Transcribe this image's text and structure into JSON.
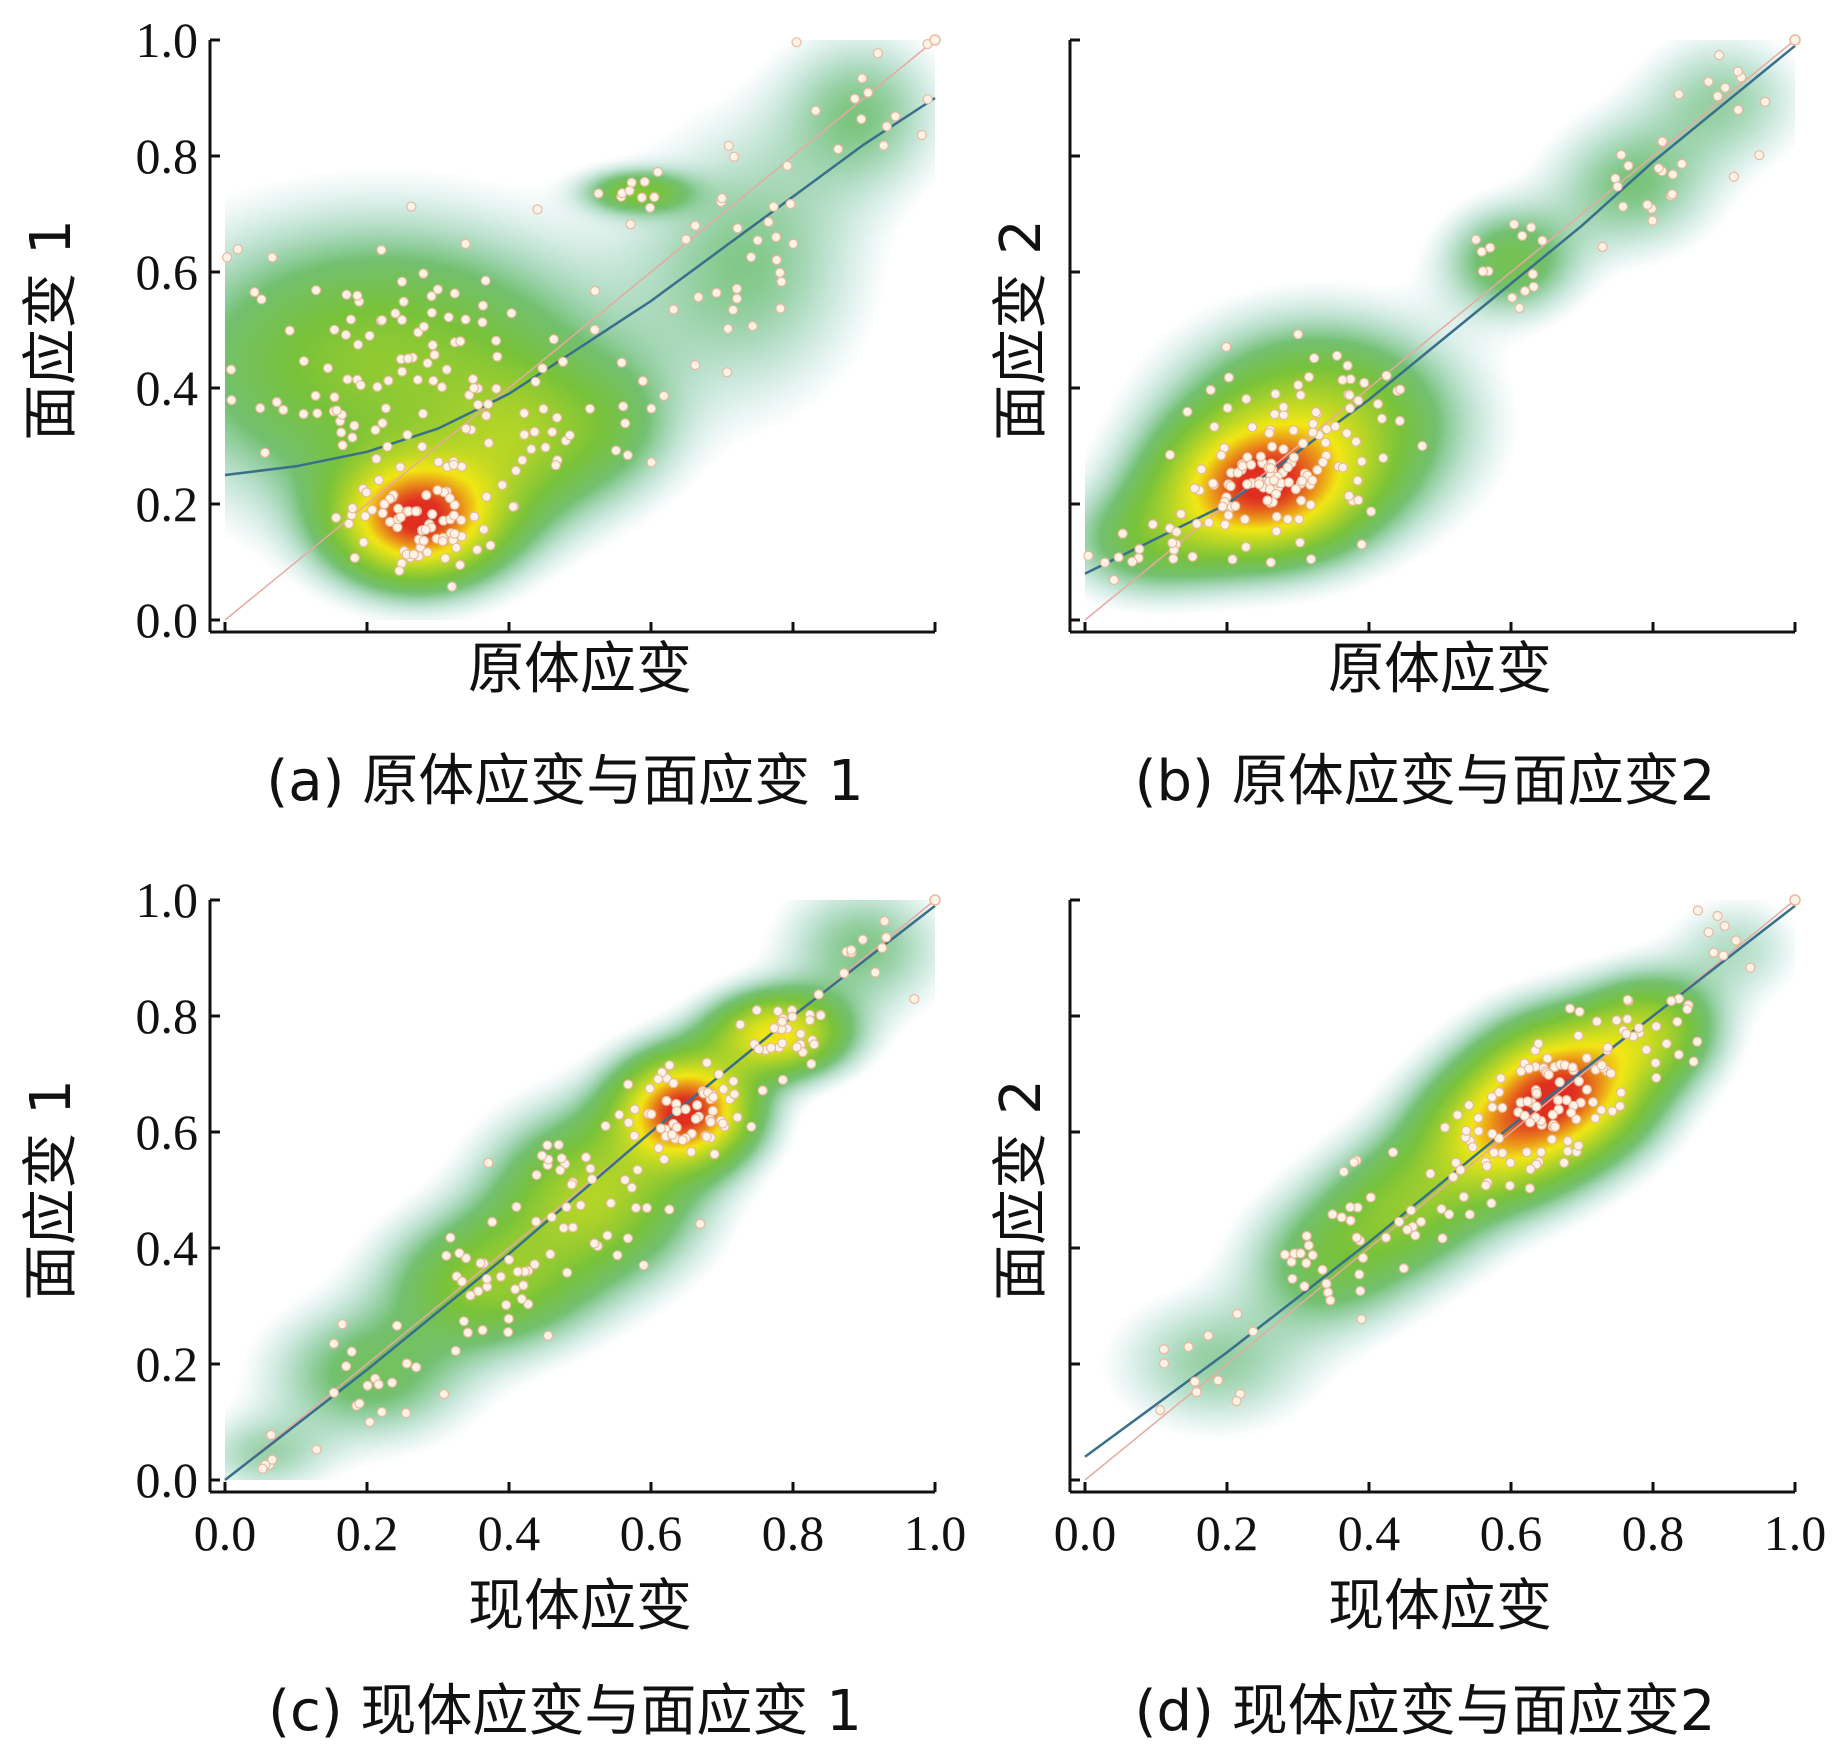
{
  "chart_data": [
    {
      "id": "a",
      "type": "scatter",
      "subtype": "density-scatter",
      "caption": "(a) 原体应变与面应变 1",
      "xlabel": "原体应变",
      "ylabel": "面应变 1",
      "xlim": [
        0,
        1
      ],
      "ylim": [
        0,
        1
      ],
      "yticks": [
        "0.0",
        "0.2",
        "0.4",
        "0.6",
        "0.8",
        "1.0"
      ],
      "xticks": [],
      "fit_curve": [
        [
          0,
          0.25
        ],
        [
          0.1,
          0.265
        ],
        [
          0.2,
          0.29
        ],
        [
          0.3,
          0.33
        ],
        [
          0.4,
          0.39
        ],
        [
          0.5,
          0.47
        ],
        [
          0.6,
          0.55
        ],
        [
          0.7,
          0.64
        ],
        [
          0.8,
          0.73
        ],
        [
          0.9,
          0.82
        ],
        [
          1.0,
          0.9
        ]
      ],
      "clusters": [
        {
          "cx": 0.27,
          "cy": 0.17,
          "sx": 0.05,
          "sy": 0.045,
          "n": 70,
          "w": 1.0
        },
        {
          "cx": 0.22,
          "cy": 0.44,
          "sx": 0.13,
          "sy": 0.1,
          "n": 110,
          "w": 0.45
        },
        {
          "cx": 0.42,
          "cy": 0.3,
          "sx": 0.05,
          "sy": 0.06,
          "n": 20,
          "w": 0.3
        },
        {
          "cx": 0.58,
          "cy": 0.74,
          "sx": 0.03,
          "sy": 0.015,
          "n": 10,
          "w": 0.35
        },
        {
          "cx": 0.74,
          "cy": 0.62,
          "sx": 0.07,
          "sy": 0.1,
          "n": 30,
          "w": 0.2
        },
        {
          "cx": 0.9,
          "cy": 0.88,
          "sx": 0.05,
          "sy": 0.06,
          "n": 15,
          "w": 0.2
        },
        {
          "cx": 0.55,
          "cy": 0.33,
          "sx": 0.04,
          "sy": 0.05,
          "n": 8,
          "w": 0.15
        }
      ]
    },
    {
      "id": "b",
      "type": "scatter",
      "subtype": "density-scatter",
      "caption": "(b) 原体应变与面应变2",
      "xlabel": "原体应变",
      "ylabel": "面应变 2",
      "xlim": [
        0,
        1
      ],
      "ylim": [
        0,
        1
      ],
      "yticks": [],
      "xticks": [],
      "fit_curve": [
        [
          0,
          0.08
        ],
        [
          0.1,
          0.14
        ],
        [
          0.2,
          0.2
        ],
        [
          0.3,
          0.29
        ],
        [
          0.4,
          0.38
        ],
        [
          0.5,
          0.48
        ],
        [
          0.6,
          0.58
        ],
        [
          0.7,
          0.68
        ],
        [
          0.8,
          0.79
        ],
        [
          0.9,
          0.89
        ],
        [
          1.0,
          0.99
        ]
      ],
      "clusters": [
        {
          "cx": 0.24,
          "cy": 0.22,
          "sx": 0.06,
          "sy": 0.05,
          "n": 80,
          "w": 1.0
        },
        {
          "cx": 0.33,
          "cy": 0.34,
          "sx": 0.08,
          "sy": 0.07,
          "n": 60,
          "w": 0.6
        },
        {
          "cx": 0.08,
          "cy": 0.13,
          "sx": 0.05,
          "sy": 0.04,
          "n": 15,
          "w": 0.3
        },
        {
          "cx": 0.6,
          "cy": 0.62,
          "sx": 0.04,
          "sy": 0.04,
          "n": 15,
          "w": 0.35
        },
        {
          "cx": 0.77,
          "cy": 0.75,
          "sx": 0.05,
          "sy": 0.05,
          "n": 15,
          "w": 0.25
        },
        {
          "cx": 0.9,
          "cy": 0.9,
          "sx": 0.05,
          "sy": 0.05,
          "n": 12,
          "w": 0.2
        }
      ]
    },
    {
      "id": "c",
      "type": "scatter",
      "subtype": "density-scatter",
      "caption": "(c) 现体应变与面应变 1",
      "xlabel": "现体应变",
      "ylabel": "面应变 1",
      "xlim": [
        0,
        1
      ],
      "ylim": [
        0,
        1
      ],
      "yticks": [
        "0.0",
        "0.2",
        "0.4",
        "0.6",
        "0.8",
        "1.0"
      ],
      "xticks": [
        "0.0",
        "0.2",
        "0.4",
        "0.6",
        "0.8",
        "1.0"
      ],
      "fit_curve": [
        [
          0,
          0.0
        ],
        [
          0.2,
          0.19
        ],
        [
          0.4,
          0.39
        ],
        [
          0.6,
          0.6
        ],
        [
          0.8,
          0.8
        ],
        [
          1.0,
          0.99
        ]
      ],
      "clusters": [
        {
          "cx": 0.65,
          "cy": 0.64,
          "sx": 0.04,
          "sy": 0.04,
          "n": 60,
          "w": 1.0
        },
        {
          "cx": 0.78,
          "cy": 0.77,
          "sx": 0.04,
          "sy": 0.03,
          "n": 30,
          "w": 0.7
        },
        {
          "cx": 0.52,
          "cy": 0.49,
          "sx": 0.06,
          "sy": 0.06,
          "n": 40,
          "w": 0.5
        },
        {
          "cx": 0.37,
          "cy": 0.34,
          "sx": 0.06,
          "sy": 0.05,
          "n": 30,
          "w": 0.4
        },
        {
          "cx": 0.2,
          "cy": 0.18,
          "sx": 0.06,
          "sy": 0.05,
          "n": 18,
          "w": 0.25
        },
        {
          "cx": 0.05,
          "cy": 0.04,
          "sx": 0.04,
          "sy": 0.03,
          "n": 8,
          "w": 0.15
        },
        {
          "cx": 0.9,
          "cy": 0.92,
          "sx": 0.05,
          "sy": 0.05,
          "n": 12,
          "w": 0.2
        }
      ]
    },
    {
      "id": "d",
      "type": "scatter",
      "subtype": "density-scatter",
      "caption": "(d) 现体应变与面应变2",
      "xlabel": "现体应变",
      "ylabel": "面应变 2",
      "xlim": [
        0,
        1
      ],
      "ylim": [
        0,
        1
      ],
      "yticks": [],
      "xticks": [
        "0.0",
        "0.2",
        "0.4",
        "0.6",
        "0.8",
        "1.0"
      ],
      "fit_curve": [
        [
          0,
          0.04
        ],
        [
          0.2,
          0.22
        ],
        [
          0.4,
          0.41
        ],
        [
          0.6,
          0.61
        ],
        [
          0.8,
          0.8
        ],
        [
          1.0,
          0.99
        ]
      ],
      "clusters": [
        {
          "cx": 0.68,
          "cy": 0.68,
          "sx": 0.05,
          "sy": 0.05,
          "n": 60,
          "w": 1.0
        },
        {
          "cx": 0.58,
          "cy": 0.59,
          "sx": 0.05,
          "sy": 0.05,
          "n": 40,
          "w": 0.7
        },
        {
          "cx": 0.8,
          "cy": 0.78,
          "sx": 0.04,
          "sy": 0.04,
          "n": 25,
          "w": 0.5
        },
        {
          "cx": 0.45,
          "cy": 0.47,
          "sx": 0.05,
          "sy": 0.05,
          "n": 25,
          "w": 0.4
        },
        {
          "cx": 0.34,
          "cy": 0.37,
          "sx": 0.05,
          "sy": 0.05,
          "n": 18,
          "w": 0.3
        },
        {
          "cx": 0.18,
          "cy": 0.2,
          "sx": 0.06,
          "sy": 0.05,
          "n": 12,
          "w": 0.2
        },
        {
          "cx": 0.92,
          "cy": 0.92,
          "sx": 0.04,
          "sy": 0.04,
          "n": 10,
          "w": 0.15
        }
      ]
    }
  ],
  "colors": {
    "low": "#5fb8c4",
    "mid": "#6cbd2a",
    "high": "#f2e600",
    "peak": "#dd1c0e",
    "fit_line": "#3a6f8c",
    "point_fill": "#fff3e6",
    "point_stroke": "#e9b8a0"
  }
}
